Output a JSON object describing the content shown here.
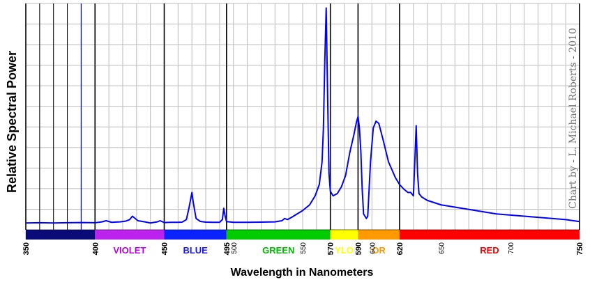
{
  "chart_data": {
    "type": "line",
    "title": "",
    "xlabel": "Wavelength in Nanometers",
    "ylabel": "Relative Spectral Power",
    "credit": "Chart by - L. Michael Roberts - 2010",
    "xlim": [
      350,
      750
    ],
    "ylim": [
      0,
      1
    ],
    "grid": true,
    "major_ticks": [
      "350",
      "400",
      "450",
      "495",
      "570",
      "590",
      "620",
      "750"
    ],
    "minor_ticks": [
      "500",
      "550",
      "600",
      "650",
      "700"
    ],
    "bands": [
      {
        "start": 350,
        "end": 400,
        "color": "#0a0a78",
        "label": ""
      },
      {
        "start": 400,
        "end": 450,
        "color": "#bb22ee",
        "label": "VIOLET",
        "label_color": "#bb00dd"
      },
      {
        "start": 450,
        "end": 495,
        "color": "#0a22ff",
        "label": "BLUE",
        "label_color": "#1818ee"
      },
      {
        "start": 495,
        "end": 570,
        "color": "#00cc00",
        "label": "GREEN",
        "label_color": "#00bb00"
      },
      {
        "start": 570,
        "end": 590,
        "color": "#ffff00",
        "label": "YLO",
        "label_color": "#ffff00"
      },
      {
        "start": 590,
        "end": 620,
        "color": "#ff9900",
        "label": "OR",
        "label_color": "#ff9900"
      },
      {
        "start": 620,
        "end": 750,
        "color": "#ff0000",
        "label": "RED",
        "label_color": "#ee0000"
      }
    ],
    "series": [
      {
        "color": "#0000ff",
        "points": [
          [
            350,
            0.03
          ],
          [
            360,
            0.031
          ],
          [
            370,
            0.03
          ],
          [
            380,
            0.031
          ],
          [
            390,
            0.032
          ],
          [
            400,
            0.031
          ],
          [
            405,
            0.035
          ],
          [
            408,
            0.04
          ],
          [
            412,
            0.033
          ],
          [
            418,
            0.035
          ],
          [
            422,
            0.038
          ],
          [
            425,
            0.045
          ],
          [
            427,
            0.06
          ],
          [
            429,
            0.05
          ],
          [
            431,
            0.04
          ],
          [
            436,
            0.035
          ],
          [
            440,
            0.03
          ],
          [
            445,
            0.035
          ],
          [
            447,
            0.04
          ],
          [
            450,
            0.032
          ],
          [
            455,
            0.033
          ],
          [
            460,
            0.033
          ],
          [
            463,
            0.034
          ],
          [
            466,
            0.045
          ],
          [
            468,
            0.1
          ],
          [
            470,
            0.165
          ],
          [
            471,
            0.12
          ],
          [
            473,
            0.05
          ],
          [
            476,
            0.037
          ],
          [
            480,
            0.034
          ],
          [
            485,
            0.033
          ],
          [
            490,
            0.033
          ],
          [
            492,
            0.045
          ],
          [
            493,
            0.095
          ],
          [
            494,
            0.06
          ],
          [
            495,
            0.036
          ],
          [
            500,
            0.033
          ],
          [
            510,
            0.033
          ],
          [
            520,
            0.034
          ],
          [
            530,
            0.035
          ],
          [
            535,
            0.04
          ],
          [
            537,
            0.05
          ],
          [
            539,
            0.045
          ],
          [
            542,
            0.055
          ],
          [
            546,
            0.07
          ],
          [
            550,
            0.085
          ],
          [
            555,
            0.11
          ],
          [
            559,
            0.15
          ],
          [
            562,
            0.2
          ],
          [
            564,
            0.3
          ],
          [
            565,
            0.45
          ],
          [
            566,
            0.75
          ],
          [
            567,
            0.98
          ],
          [
            568,
            0.6
          ],
          [
            569,
            0.25
          ],
          [
            570,
            0.17
          ],
          [
            572,
            0.15
          ],
          [
            575,
            0.16
          ],
          [
            578,
            0.19
          ],
          [
            581,
            0.24
          ],
          [
            584,
            0.34
          ],
          [
            587,
            0.42
          ],
          [
            589,
            0.48
          ],
          [
            590,
            0.5
          ],
          [
            591,
            0.45
          ],
          [
            592,
            0.35
          ],
          [
            593,
            0.18
          ],
          [
            594,
            0.07
          ],
          [
            596,
            0.05
          ],
          [
            597,
            0.06
          ],
          [
            599,
            0.3
          ],
          [
            601,
            0.45
          ],
          [
            603,
            0.48
          ],
          [
            605,
            0.47
          ],
          [
            608,
            0.4
          ],
          [
            612,
            0.3
          ],
          [
            617,
            0.23
          ],
          [
            620,
            0.2
          ],
          [
            623,
            0.18
          ],
          [
            626,
            0.165
          ],
          [
            628,
            0.165
          ],
          [
            630,
            0.15
          ],
          [
            631,
            0.3
          ],
          [
            632,
            0.46
          ],
          [
            633,
            0.25
          ],
          [
            634,
            0.16
          ],
          [
            636,
            0.145
          ],
          [
            640,
            0.13
          ],
          [
            645,
            0.12
          ],
          [
            650,
            0.11
          ],
          [
            660,
            0.1
          ],
          [
            670,
            0.09
          ],
          [
            680,
            0.08
          ],
          [
            690,
            0.07
          ],
          [
            700,
            0.065
          ],
          [
            710,
            0.06
          ],
          [
            720,
            0.055
          ],
          [
            730,
            0.05
          ],
          [
            740,
            0.045
          ],
          [
            750,
            0.036
          ]
        ]
      }
    ]
  }
}
